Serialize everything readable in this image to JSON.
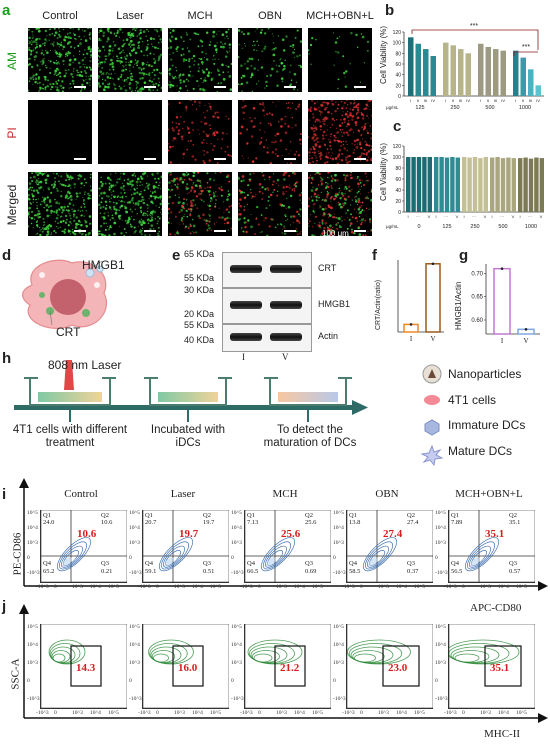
{
  "panels": {
    "a": "a",
    "b": "b",
    "c": "c",
    "d": "d",
    "e": "e",
    "f": "f",
    "g": "g",
    "h": "h",
    "i": "i",
    "j": "j"
  },
  "panel_a": {
    "columns": [
      "Control",
      "Laser",
      "MCH",
      "OBN",
      "MCH+OBN+L"
    ],
    "rows": [
      "AM",
      "PI",
      "Merged"
    ],
    "scale_label": "100 μm",
    "row_colors": [
      "#1a9e1a",
      "#c62828",
      "#222222"
    ]
  },
  "chart_data": [
    {
      "type": "bar",
      "panel": "b",
      "ylabel": "Cell Viability (%)",
      "xlabel": "μg/mL",
      "ylim": [
        0,
        120
      ],
      "yticks": [
        0,
        20,
        40,
        60,
        80,
        100,
        120
      ],
      "groups": [
        "125",
        "250",
        "500",
        "1000"
      ],
      "sublabels": [
        "I",
        "II",
        "III",
        "IV"
      ],
      "group_colors": [
        [
          "#1f6f78",
          "#2a8a93",
          "#2a8a93",
          "#2a8a93"
        ],
        [
          "#b7b48a",
          "#b7b48a",
          "#b7b48a",
          "#b7b48a"
        ],
        [
          "#9c9a80",
          "#9c9a80",
          "#9c9a80",
          "#9c9a80"
        ],
        [
          "#2a7f8f",
          "#3a9aa8",
          "#4ab3c2",
          "#5cc4d1"
        ]
      ],
      "values": [
        [
          110,
          98,
          88,
          75
        ],
        [
          100,
          95,
          88,
          80
        ],
        [
          98,
          92,
          88,
          85
        ],
        [
          85,
          72,
          50,
          20
        ]
      ],
      "significance": [
        "***",
        "***"
      ]
    },
    {
      "type": "bar",
      "panel": "c",
      "ylabel": "Cell Viability (%)",
      "xlabel": "μg/mL",
      "ylim": [
        0,
        120
      ],
      "yticks": [
        0,
        20,
        40,
        60,
        80,
        100,
        120
      ],
      "groups": [
        "0",
        "125",
        "250",
        "500",
        "1000"
      ],
      "sublabels": [
        "I",
        "···",
        "V"
      ],
      "group_colors": [
        "#1e6b73",
        "#2f8c95",
        "#c4c096",
        "#a9a680",
        "#7c7a55"
      ],
      "values": [
        [
          100,
          100,
          100,
          100,
          100
        ],
        [
          100,
          100,
          99,
          100,
          99
        ],
        [
          100,
          99,
          100,
          98,
          100
        ],
        [
          99,
          100,
          98,
          99,
          98
        ],
        [
          98,
          99,
          97,
          99,
          98
        ]
      ]
    },
    {
      "type": "bar",
      "panel": "f",
      "ylabel": "CRT/Actin(ratio)",
      "categories": [
        "I",
        "V"
      ],
      "values": [
        0.47,
        0.63
      ],
      "colors": [
        "#f08a24",
        "#9a5a1a"
      ]
    },
    {
      "type": "bar",
      "panel": "g",
      "ylabel": "HMGB1/Actin",
      "ylim": [
        0.57,
        0.72
      ],
      "yticks": [
        "0.60",
        "0.65",
        "0.70"
      ],
      "categories": [
        "I",
        "V"
      ],
      "values": [
        0.71,
        0.58
      ],
      "colors": [
        "#c07ad0",
        "#7fa8e0"
      ]
    }
  ],
  "panel_d": {
    "label_top": "HMGB1",
    "label_bottom": "CRT"
  },
  "panel_e": {
    "kda": [
      "65 KDa",
      "55 KDa",
      "30 KDa",
      "20 KDa",
      "55 KDa",
      "40 KDa"
    ],
    "bands": [
      "CRT",
      "HMGB1",
      "Actin"
    ],
    "lanes": [
      "I",
      "V"
    ]
  },
  "panel_h": {
    "laser": "808 nm Laser",
    "step1": "4T1 cells with different treatment",
    "step2": "Incubated with iDCs",
    "step3": "To detect the maturation of DCs",
    "legend": [
      "Nanoparticles",
      "4T1 cells",
      "Immature DCs",
      "Mature DCs"
    ]
  },
  "panel_i": {
    "columns": [
      "Control",
      "Laser",
      "MCH",
      "OBN",
      "MCH+OBN+L"
    ],
    "ylabel": "PE-CD86",
    "xlabel": "APC-CD80",
    "quadrants": [
      {
        "q1": "24.0",
        "q2": "10.6",
        "q3": "0.21",
        "q4": "65.2",
        "highlight": "10.6"
      },
      {
        "q1": "20.7",
        "q2": "19.7",
        "q3": "0.51",
        "q4": "59.1",
        "highlight": "19.7"
      },
      {
        "q1": "7.13",
        "q2": "25.6",
        "q3": "0.69",
        "q4": "66.5",
        "highlight": "25.6"
      },
      {
        "q1": "13.8",
        "q2": "27.4",
        "q3": "0.37",
        "q4": "58.5",
        "highlight": "27.4"
      },
      {
        "q1": "7.89",
        "q2": "35.1",
        "q3": "0.57",
        "q4": "56.5",
        "highlight": "35.1"
      }
    ],
    "q_names": [
      "Q1",
      "Q2",
      "Q3",
      "Q4"
    ]
  },
  "panel_j": {
    "ylabel": "SSC-A",
    "xlabel": "MHC-II",
    "values": [
      "14.3",
      "16.0",
      "21.2",
      "23.0",
      "35.1"
    ]
  },
  "axis_ticks": {
    "y": [
      "10^5",
      "10^4",
      "10^3",
      "0",
      "-10^3"
    ],
    "x": [
      "-10^3",
      "0",
      "10^3",
      "10^4",
      "10^5"
    ]
  }
}
